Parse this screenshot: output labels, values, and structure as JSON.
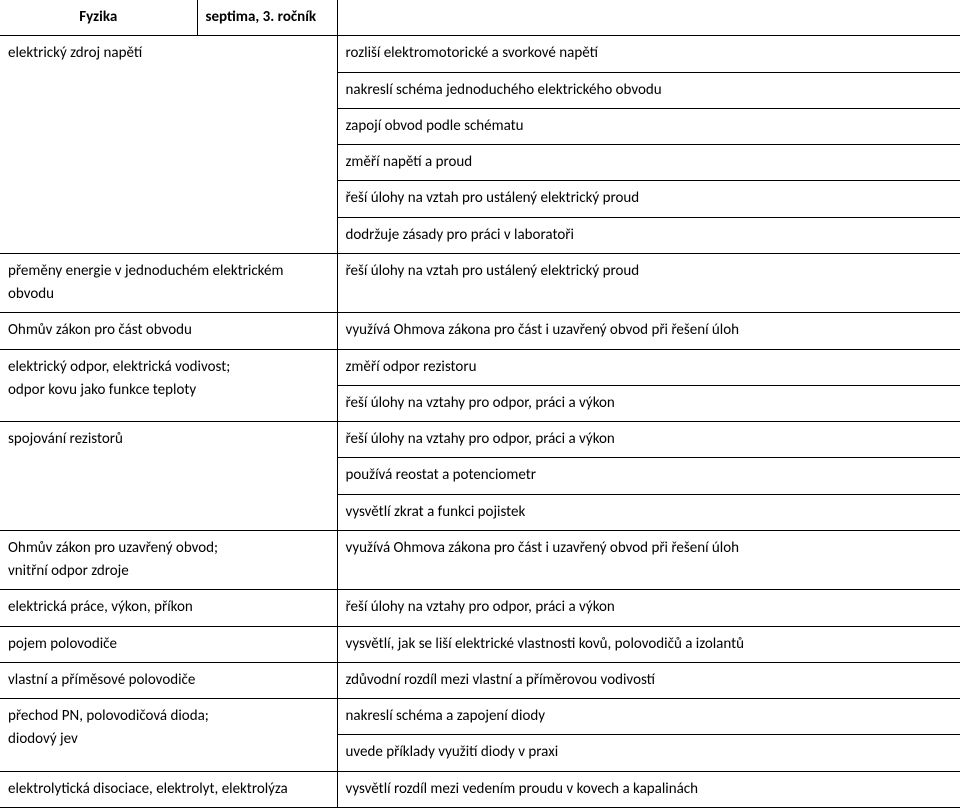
{
  "header": {
    "subject": "Fyzika",
    "grade": "septima, 3. ročník"
  },
  "rows": [
    {
      "left": [
        "elektrický zdroj napětí"
      ],
      "right": [
        "rozliší elektromotorické a svorkové napětí",
        "nakreslí schéma jednoduchého elektrického obvodu",
        "zapojí obvod podle schématu",
        "změří napětí a proud",
        "řeší úlohy na vztah pro ustálený elektrický proud",
        "dodržuje zásady pro práci v laboratoři"
      ]
    },
    {
      "left": [
        "přeměny energie v jednoduchém elektrickém obvodu"
      ],
      "right": [
        "řeší úlohy na vztah pro ustálený elektrický proud"
      ]
    },
    {
      "left": [
        "Ohmův zákon pro část obvodu"
      ],
      "right": [
        "využívá Ohmova zákona pro část i uzavřený obvod při řešení úloh"
      ]
    },
    {
      "left": [
        "elektrický odpor, elektrická vodivost;",
        "odpor kovu jako funkce teploty"
      ],
      "right": [
        "změří odpor rezistoru",
        "řeší úlohy na vztahy pro odpor, práci a výkon"
      ]
    },
    {
      "left": [
        "spojování rezistorů"
      ],
      "right": [
        "řeší úlohy na vztahy pro odpor, práci a výkon",
        "používá reostat a potenciometr",
        "vysvětlí zkrat a funkci pojistek"
      ]
    },
    {
      "left": [
        "Ohmův zákon pro uzavřený obvod;",
        "vnitřní odpor zdroje"
      ],
      "right": [
        "využívá Ohmova zákona pro část i uzavřený obvod při řešení úloh"
      ]
    },
    {
      "left": [
        "elektrická práce, výkon, příkon"
      ],
      "right": [
        "řeší úlohy na vztahy pro odpor, práci a výkon"
      ]
    },
    {
      "left": [
        "pojem polovodiče"
      ],
      "right": [
        "vysvětlí, jak se liší elektrické vlastnosti kovů, polovodičů a izolantů"
      ]
    },
    {
      "left": [
        "vlastní a příměsové polovodiče"
      ],
      "right": [
        "zdůvodní rozdíl mezi vlastní a příměrovou vodivostí"
      ]
    },
    {
      "left": [
        "přechod PN, polovodičová dioda;",
        "diodový jev"
      ],
      "right": [
        "nakreslí schéma a zapojení diody",
        "uvede příklady využití diody v praxi"
      ]
    },
    {
      "left": [
        "elektrolytická disociace, elektrolyt, elektrolýza"
      ],
      "right": [
        "vysvětlí rozdíl mezi vedením proudu v kovech a kapalinách"
      ]
    }
  ]
}
